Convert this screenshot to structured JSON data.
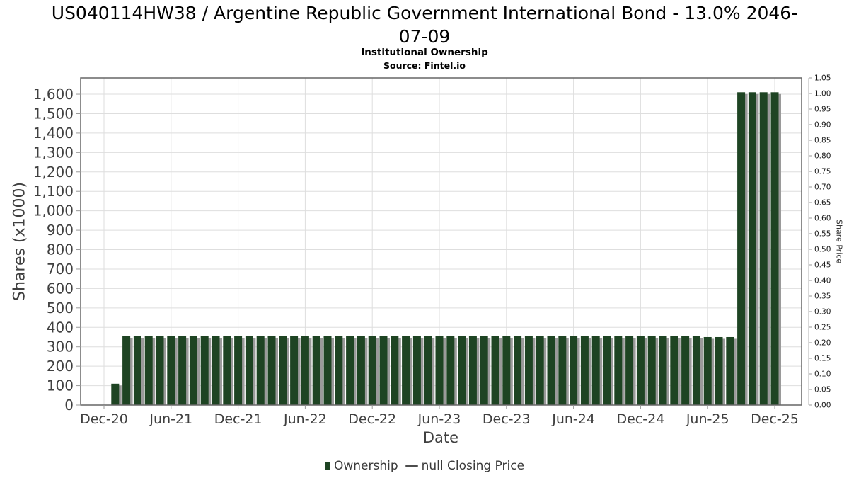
{
  "header": {
    "title_line1": "US040114HW38 / Argentine Republic Government International Bond - 13.0% 2046-",
    "title_line2": "07-09",
    "subtitle": "Institutional Ownership",
    "source": "Source: Fintel.io"
  },
  "axes": {
    "left_label": "Shares (x1000)",
    "right_label": "Share Price",
    "x_label": "Date"
  },
  "legend": {
    "ownership_label": "Ownership",
    "price_label": "null Closing Price"
  },
  "colors": {
    "bar": "#1e4423",
    "bar_shadow": "#9a9a9a",
    "grid": "#dedede",
    "frame": "#666666",
    "tick": "#999999",
    "tick_text": "#404040",
    "right_tick_text": "#1a1a1a"
  },
  "chart_data": {
    "type": "bar",
    "title": "Institutional Ownership",
    "xlabel": "Date",
    "ylabel_left": "Shares (x1000)",
    "ylabel_right": "Share Price",
    "grid": true,
    "legend_position": "bottom",
    "series_name": "Ownership",
    "secondary_series_name": "null Closing Price",
    "secondary_series_values": [],
    "categories": [
      "Jan-21",
      "Feb-21",
      "Mar-21",
      "Apr-21",
      "May-21",
      "Jun-21",
      "Jul-21",
      "Aug-21",
      "Sep-21",
      "Oct-21",
      "Nov-21",
      "Dec-21",
      "Jan-22",
      "Feb-22",
      "Mar-22",
      "Apr-22",
      "May-22",
      "Jun-22",
      "Jul-22",
      "Aug-22",
      "Sep-22",
      "Oct-22",
      "Nov-22",
      "Dec-22",
      "Jan-23",
      "Feb-23",
      "Mar-23",
      "Apr-23",
      "May-23",
      "Jun-23",
      "Jul-23",
      "Aug-23",
      "Sep-23",
      "Oct-23",
      "Nov-23",
      "Dec-23",
      "Jan-24",
      "Feb-24",
      "Mar-24",
      "Apr-24",
      "May-24",
      "Jun-24",
      "Jul-24",
      "Aug-24",
      "Sep-24",
      "Oct-24",
      "Nov-24",
      "Dec-24",
      "Jan-25",
      "Feb-25",
      "Mar-25",
      "Apr-25",
      "May-25",
      "Jun-25",
      "Jul-25",
      "Aug-25",
      "Sep-25",
      "Oct-25",
      "Nov-25",
      "Dec-25"
    ],
    "values": [
      110,
      355,
      355,
      355,
      355,
      355,
      355,
      355,
      355,
      355,
      355,
      355,
      355,
      355,
      355,
      355,
      355,
      355,
      355,
      355,
      355,
      355,
      355,
      355,
      355,
      355,
      355,
      355,
      355,
      355,
      355,
      355,
      355,
      355,
      355,
      355,
      355,
      355,
      355,
      355,
      355,
      355,
      355,
      355,
      355,
      355,
      355,
      355,
      355,
      355,
      355,
      355,
      355,
      350,
      350,
      350,
      1610,
      1610,
      1610,
      1610
    ],
    "xticks": [
      "Dec-20",
      "Jun-21",
      "Dec-21",
      "Jun-22",
      "Dec-22",
      "Jun-23",
      "Dec-23",
      "Jun-24",
      "Dec-24",
      "Jun-25",
      "Dec-25"
    ],
    "xtick_month_offsets": [
      0,
      6,
      12,
      18,
      24,
      30,
      36,
      42,
      48,
      54,
      60
    ],
    "yticks_left": {
      "values": [
        0,
        100,
        200,
        300,
        400,
        500,
        600,
        700,
        800,
        900,
        1000,
        1100,
        1200,
        1300,
        1400,
        1500,
        1600
      ],
      "labels": [
        "0",
        "100",
        "200",
        "300",
        "400",
        "500",
        "600",
        "700",
        "800",
        "900",
        "1,000",
        "1,100",
        "1,200",
        "1,300",
        "1,400",
        "1,500",
        "1,600"
      ]
    },
    "yticks_right": {
      "values": [
        0.0,
        0.05,
        0.1,
        0.15,
        0.2,
        0.25,
        0.3,
        0.35,
        0.4,
        0.45,
        0.5,
        0.55,
        0.6,
        0.65,
        0.7,
        0.75,
        0.8,
        0.85,
        0.9,
        0.95,
        1.0,
        1.05
      ],
      "labels": [
        "0.00",
        "0.05",
        "0.10",
        "0.15",
        "0.20",
        "0.25",
        "0.30",
        "0.35",
        "0.40",
        "0.45",
        "0.50",
        "0.55",
        "0.60",
        "0.65",
        "0.70",
        "0.75",
        "0.80",
        "0.85",
        "0.90",
        "0.95",
        "1.00",
        "1.05"
      ]
    },
    "ylim_left": [
      0,
      1684
    ],
    "ylim_right": [
      0,
      1.05
    ]
  }
}
